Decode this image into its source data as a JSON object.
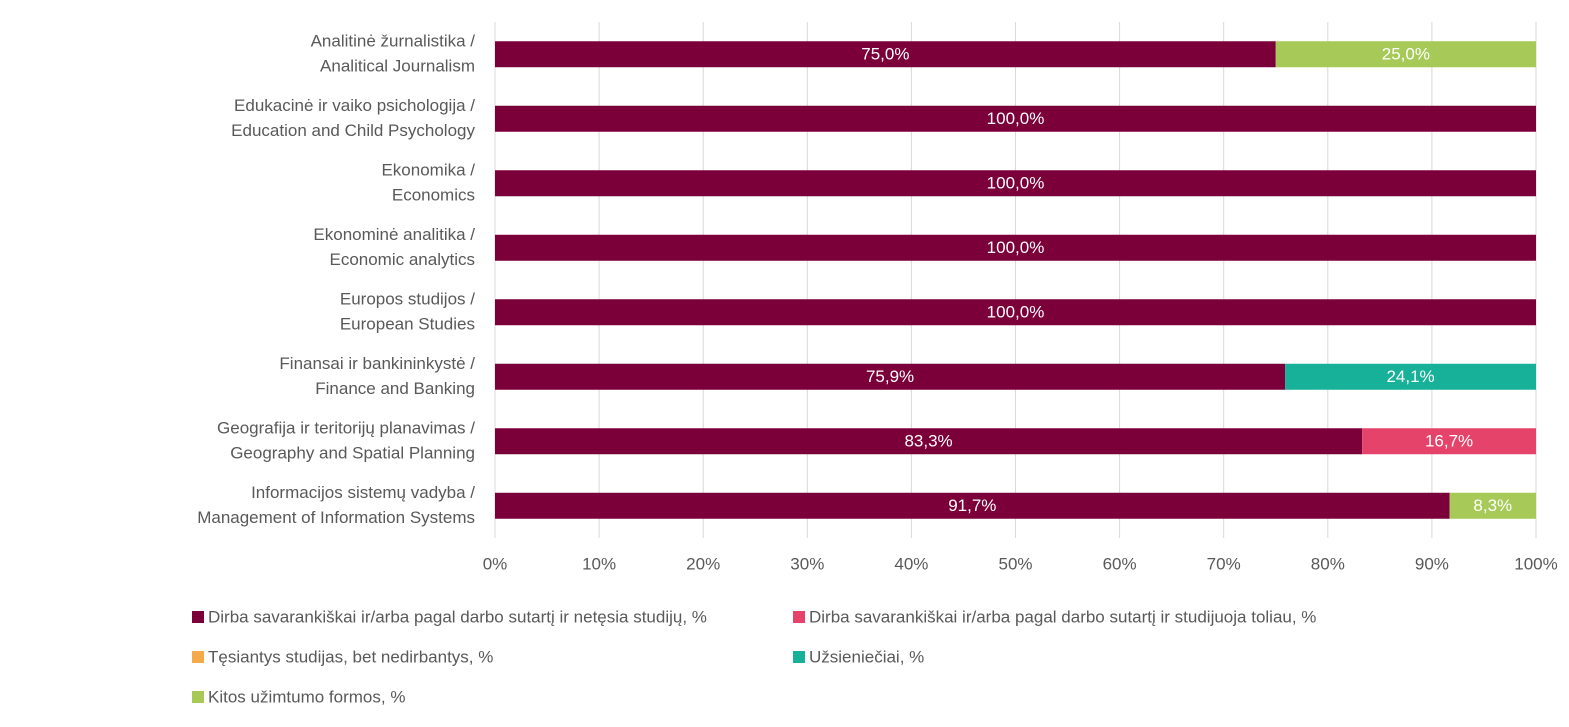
{
  "chart_data": {
    "type": "stacked-bar-horizontal",
    "categories": [
      [
        "Analitinė žurnalistika /",
        "Analitical Journalism"
      ],
      [
        "Edukacinė ir vaiko psichologija /",
        "Education and Child Psychology"
      ],
      [
        "Ekonomika /",
        "Economics"
      ],
      [
        "Ekonominė analitika /",
        "Economic analytics"
      ],
      [
        "Europos studijos /",
        "European Studies"
      ],
      [
        "Finansai ir bankininkystė /",
        "Finance and Banking"
      ],
      [
        "Geografija ir teritorijų planavimas /",
        "Geography and Spatial Planning"
      ],
      [
        "Informacijos sistemų vadyba /",
        "Management of Information Systems"
      ]
    ],
    "series": [
      {
        "name": "Dirba savarankiškai ir/arba pagal darbo sutartį ir netęsia studijų, %",
        "color": "#7b003a",
        "values": [
          75.0,
          100.0,
          100.0,
          100.0,
          100.0,
          75.9,
          83.3,
          91.7
        ],
        "value_labels": [
          "75,0%",
          "100,0%",
          "100,0%",
          "100,0%",
          "100,0%",
          "75,9%",
          "83,3%",
          "91,7%"
        ]
      },
      {
        "name": "Dirba savarankiškai ir/arba pagal darbo sutartį ir studijuoja toliau, %",
        "color": "#e5436a",
        "values": [
          null,
          null,
          null,
          null,
          null,
          null,
          16.7,
          null
        ],
        "value_labels": [
          null,
          null,
          null,
          null,
          null,
          null,
          "16,7%",
          null
        ]
      },
      {
        "name": "Tęsiantys studijas, bet nedirbantys, %",
        "color": "#f4a94b",
        "values": [
          null,
          null,
          null,
          null,
          null,
          null,
          null,
          null
        ],
        "value_labels": [
          null,
          null,
          null,
          null,
          null,
          null,
          null,
          null
        ]
      },
      {
        "name": "Užsieniečiai, %",
        "color": "#17b098",
        "values": [
          null,
          null,
          null,
          null,
          null,
          24.1,
          null,
          null
        ],
        "value_labels": [
          null,
          null,
          null,
          null,
          null,
          "24,1%",
          null,
          null
        ]
      },
      {
        "name": "Kitos užimtumo formos, %",
        "color": "#a6c957",
        "values": [
          25.0,
          null,
          null,
          null,
          null,
          null,
          null,
          8.3
        ],
        "value_labels": [
          "25,0%",
          null,
          null,
          null,
          null,
          null,
          null,
          "8,3%"
        ]
      }
    ],
    "xlim": [
      0,
      100
    ],
    "xticks": [
      {
        "value": 0,
        "label": "0%"
      },
      {
        "value": 10,
        "label": "10%"
      },
      {
        "value": 20,
        "label": "20%"
      },
      {
        "value": 30,
        "label": "30%"
      },
      {
        "value": 40,
        "label": "40%"
      },
      {
        "value": 50,
        "label": "50%"
      },
      {
        "value": 60,
        "label": "60%"
      },
      {
        "value": 70,
        "label": "70%"
      },
      {
        "value": 80,
        "label": "80%"
      },
      {
        "value": 90,
        "label": "90%"
      },
      {
        "value": 100,
        "label": "100%"
      }
    ],
    "grid": true,
    "legend": "bottom"
  }
}
